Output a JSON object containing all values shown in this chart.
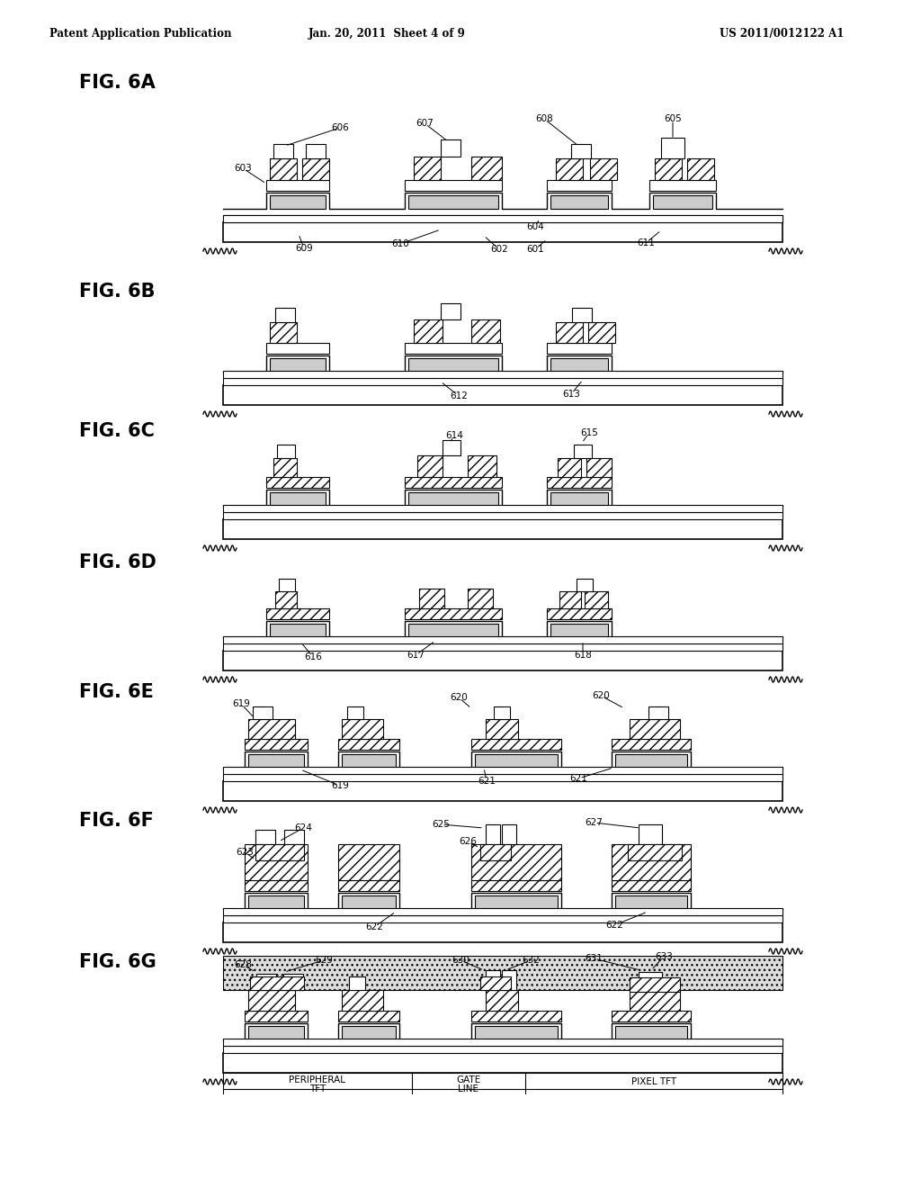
{
  "bg_color": "#ffffff",
  "header_left": "Patent Application Publication",
  "header_center": "Jan. 20, 2011  Sheet 4 of 9",
  "header_right": "US 2011/0012122 A1",
  "fig_labels": [
    "FIG. 6A",
    "FIG. 6B",
    "FIG. 6C",
    "FIG. 6D",
    "FIG. 6E",
    "FIG. 6F",
    "FIG. 6G"
  ]
}
